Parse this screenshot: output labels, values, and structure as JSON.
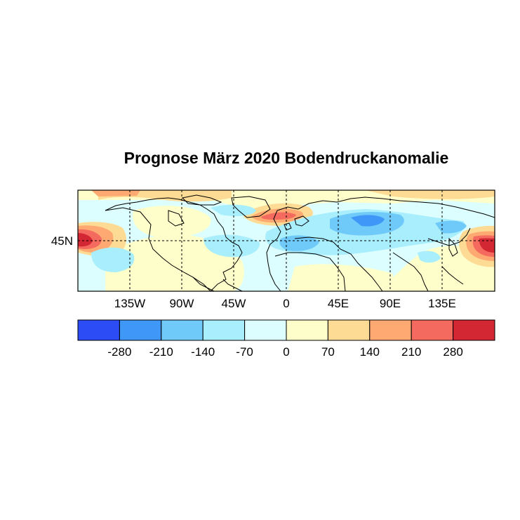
{
  "title": "Prognose März 2020 Bodendruckanomalie",
  "lon_ticks": [
    "135W",
    "90W",
    "45W",
    "0",
    "45E",
    "90E",
    "135E"
  ],
  "lat_ticks": [
    "45N"
  ],
  "colorbar": {
    "labels": [
      "-280",
      "-210",
      "-140",
      "-70",
      "0",
      "70",
      "140",
      "210",
      "280"
    ],
    "colors": [
      "#2c4cf5",
      "#3f97f7",
      "#6fcaf9",
      "#a8eefd",
      "#dcfefe",
      "#fefeca",
      "#fedb94",
      "#fea972",
      "#f56a5e",
      "#d42734"
    ]
  },
  "map": {
    "type": "geographic-anomaly-field",
    "lon_range": [
      -180,
      180
    ],
    "lat_range": [
      0,
      90
    ],
    "grid": "dashed"
  }
}
